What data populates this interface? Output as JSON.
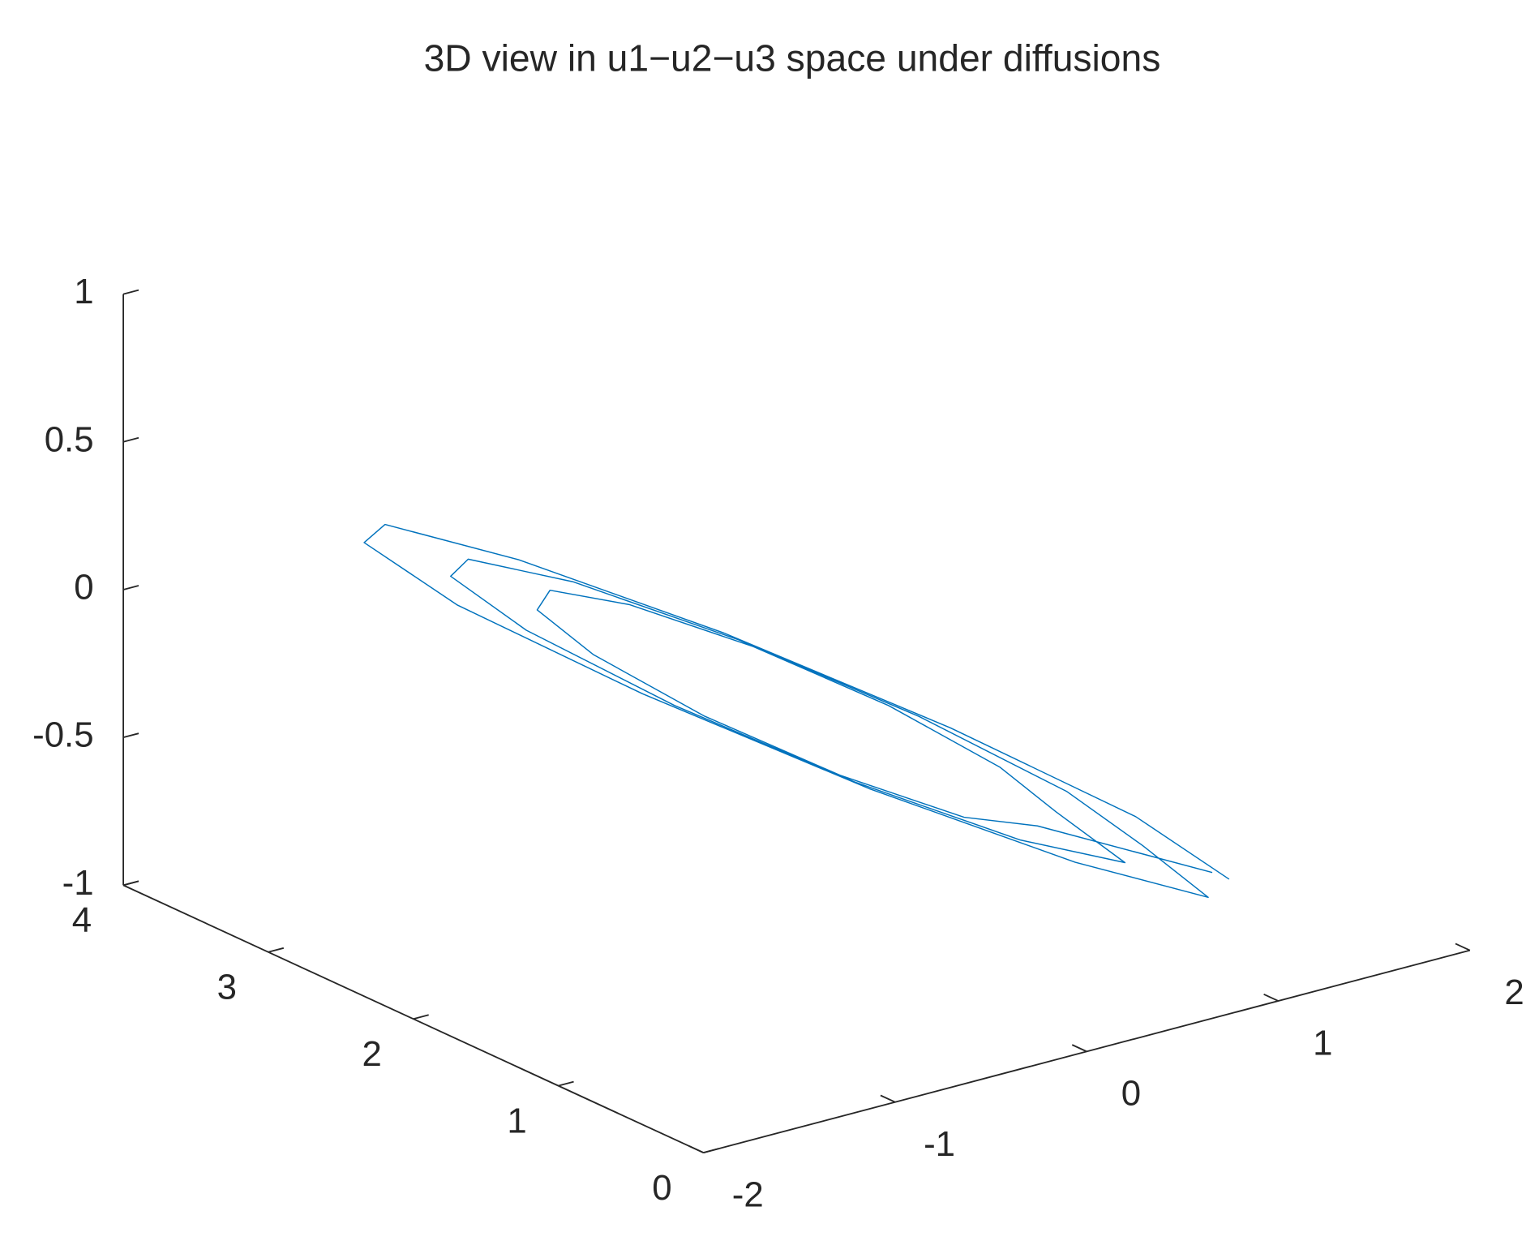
{
  "chart_data": {
    "type": "line3d",
    "title": "3D view in  u1−u2−u3 space under diffusions",
    "series": [
      {
        "color": "#0072BD",
        "x": [
          1.5,
          1.3,
          0.75,
          0,
          -0.75,
          -1.3,
          -1.5,
          -1.3,
          -0.75,
          0,
          0.75,
          1.3,
          1.2,
          1.04,
          0.6,
          0,
          -0.6,
          -1.04,
          -1.2,
          -1.04,
          -0.6,
          0,
          0.6,
          1.04,
          0.9,
          0.78,
          0.45,
          0,
          -0.45,
          -0.78,
          -0.9,
          -0.78,
          -0.45,
          0,
          0.45,
          0.78,
          1.45
        ],
        "y": [
          1.0,
          1.38,
          1.93,
          2.5,
          2.93,
          3.12,
          3.0,
          2.62,
          2.07,
          1.5,
          1.07,
          0.88,
          1.2,
          1.51,
          1.95,
          2.4,
          2.75,
          2.89,
          2.8,
          2.49,
          2.05,
          1.6,
          1.25,
          1.11,
          1.4,
          1.63,
          1.96,
          2.3,
          2.56,
          2.67,
          2.6,
          2.37,
          2.04,
          1.7,
          1.44,
          1.37,
          1.05
        ],
        "z": [
          -0.9,
          -0.74,
          -0.47,
          -0.15,
          0.13,
          0.3,
          0.3,
          0.14,
          -0.13,
          -0.45,
          -0.73,
          -0.9,
          -0.78,
          -0.64,
          -0.41,
          -0.15,
          0.07,
          0.19,
          0.18,
          0.04,
          -0.19,
          -0.45,
          -0.67,
          -0.79,
          -0.66,
          -0.54,
          -0.35,
          -0.15,
          0.01,
          0.09,
          0.06,
          -0.06,
          -0.25,
          -0.45,
          -0.61,
          -0.68,
          -0.88
        ]
      }
    ],
    "xlim": [
      -2,
      2
    ],
    "xticks": [
      -2,
      -1,
      0,
      1,
      2
    ],
    "ylim": [
      0,
      4
    ],
    "yticks": [
      0,
      1,
      2,
      3,
      4
    ],
    "zlim": [
      -1,
      1
    ],
    "zticks": [
      -1,
      -0.5,
      0,
      0.5,
      1
    ]
  }
}
